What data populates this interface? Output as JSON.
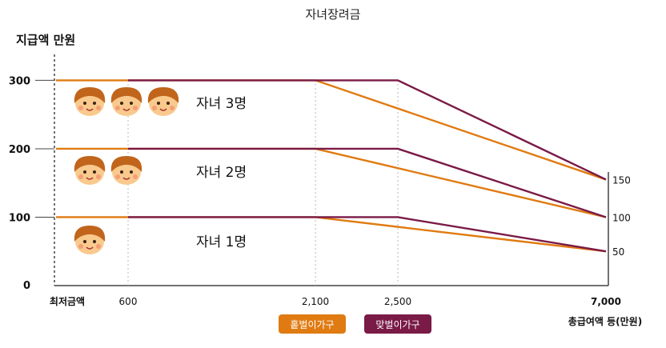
{
  "colors": {
    "single_income": "#e07b12",
    "dual_income": "#7a1a46",
    "face": "#f9c98d",
    "hair": "#c0651b",
    "cheek": "#f28b6e"
  },
  "chart_data": {
    "type": "line",
    "title": "자녀장려금",
    "ylabel": "지급액 만원",
    "xlabel": "총급여액 등(만원)",
    "ylim": [
      0,
      340
    ],
    "x_ticks": [
      {
        "label": "최저금액",
        "bold": true
      },
      {
        "label": "600",
        "bold": false
      },
      {
        "label": "2,100",
        "bold": false
      },
      {
        "label": "2,500",
        "bold": false
      },
      {
        "label": "7,000",
        "bold": true
      }
    ],
    "y_ticks": [
      "0",
      "100",
      "200",
      "300"
    ],
    "right_labels": [
      {
        "label": "150",
        "y": 155
      },
      {
        "label": "100",
        "y": 100
      },
      {
        "label": "50",
        "y": 50
      }
    ],
    "groups": [
      {
        "label": "자녀 3명",
        "kids": 3
      },
      {
        "label": "자녀 2명",
        "kids": 2
      },
      {
        "label": "자녀 1명",
        "kids": 1
      }
    ],
    "series": [
      {
        "name": "홑벌이가구",
        "color_key": "single_income",
        "lines": [
          {
            "x": [
              "최저금액",
              "2,100",
              "7,000"
            ],
            "y": [
              300,
              300,
              155
            ]
          },
          {
            "x": [
              "최저금액",
              "2,100",
              "7,000"
            ],
            "y": [
              200,
              200,
              100
            ]
          },
          {
            "x": [
              "최저금액",
              "2,100",
              "7,000"
            ],
            "y": [
              100,
              100,
              50
            ]
          }
        ]
      },
      {
        "name": "맞벌이가구",
        "color_key": "dual_income",
        "lines": [
          {
            "x": [
              "600",
              "2,500",
              "7,000"
            ],
            "y": [
              300,
              300,
              155
            ]
          },
          {
            "x": [
              "600",
              "2,500",
              "7,000"
            ],
            "y": [
              200,
              200,
              100
            ]
          },
          {
            "x": [
              "600",
              "2,500",
              "7,000"
            ],
            "y": [
              100,
              100,
              50
            ]
          }
        ]
      }
    ],
    "legend": [
      {
        "label": "홑벌이가구",
        "color_key": "single_income"
      },
      {
        "label": "맞벌이가구",
        "color_key": "dual_income"
      }
    ],
    "legend_position": "bottom-center",
    "grid": false
  }
}
